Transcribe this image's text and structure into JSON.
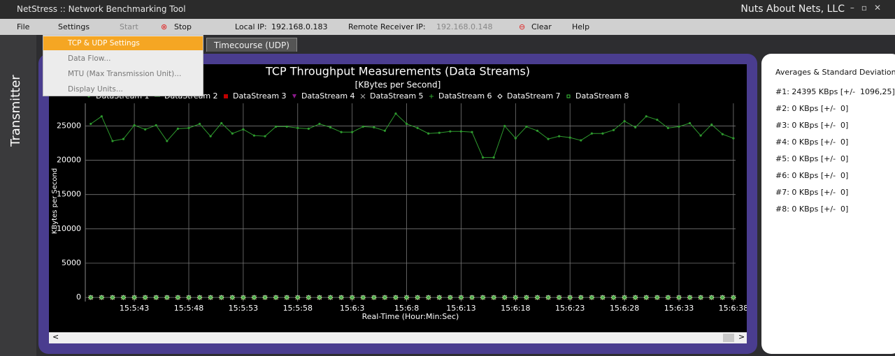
{
  "window": {
    "title": "NetStress :: Network Benchmarking Tool",
    "company": "Nuts About Nets, LLC"
  },
  "toolbar": {
    "file": "File",
    "settings": "Settings",
    "start": "Start",
    "stop": "Stop",
    "local_ip_label": "Local IP:",
    "local_ip": "192.168.0.183",
    "remote_ip_label": "Remote Receiver IP:",
    "remote_ip": "192.168.0.148",
    "clear": "Clear",
    "help": "Help"
  },
  "settings_menu": [
    "TCP & UDP Settings",
    "Data Flow...",
    "MTU (Max Transmission Unit)...",
    "Display Units..."
  ],
  "side_tab": "Transmitter",
  "tabs": [
    "Timecourse (UDP)"
  ],
  "chart_data": {
    "type": "line",
    "title": "TCP Throughput Measurements (Data Streams)",
    "subtitle": "[KBytes per Second]",
    "x_label": "Real-Time (Hour:Min:Sec)",
    "y_label": "KBytes per Second",
    "x": [
      39,
      40,
      41,
      42,
      43,
      44,
      45,
      46,
      47,
      48,
      49,
      50,
      51,
      52,
      53,
      54,
      55,
      56,
      57,
      58,
      59,
      60,
      61,
      62,
      63,
      64,
      65,
      66,
      67,
      68,
      69,
      70,
      71,
      72,
      73,
      74,
      75,
      76,
      77,
      78,
      79,
      80,
      81,
      82,
      83,
      84,
      85,
      86,
      87,
      88,
      89,
      90,
      91,
      92,
      93,
      94,
      95,
      96,
      97,
      98
    ],
    "xlim": [
      38.5,
      98.2
    ],
    "xticks": [
      {
        "value": 43,
        "label": "15:5:43"
      },
      {
        "value": 48,
        "label": "15:5:48"
      },
      {
        "value": 53,
        "label": "15:5:53"
      },
      {
        "value": 58,
        "label": "15:5:58"
      },
      {
        "value": 63,
        "label": "15:6:3"
      },
      {
        "value": 68,
        "label": "15:6:8"
      },
      {
        "value": 73,
        "label": "15:6:13"
      },
      {
        "value": 78,
        "label": "15:6:18"
      },
      {
        "value": 83,
        "label": "15:6:23"
      },
      {
        "value": 88,
        "label": "15:6:28"
      },
      {
        "value": 93,
        "label": "15:6:33"
      },
      {
        "value": 98,
        "label": "15:6:38"
      }
    ],
    "ylim": [
      -600,
      28300
    ],
    "yticks": [
      0,
      5000,
      10000,
      15000,
      20000,
      25000
    ],
    "grid": true,
    "series": [
      {
        "name": "DataStream 1",
        "color": "#2e9a2e",
        "marker": "circle",
        "line": true,
        "values": [
          25300,
          26400,
          22800,
          23100,
          25100,
          24500,
          25100,
          22800,
          24600,
          24700,
          25300,
          23500,
          25400,
          23900,
          24500,
          23600,
          23500,
          24900,
          24900,
          24700,
          24600,
          25300,
          24800,
          24100,
          24100,
          24900,
          24800,
          24300,
          26800,
          25300,
          24700,
          23900,
          24000,
          24200,
          24200,
          24100,
          20400,
          20400,
          25000,
          23200,
          24900,
          24300,
          23100,
          23500,
          23300,
          22900,
          23900,
          23900,
          24400,
          25700,
          24800,
          26400,
          25900,
          24700,
          24900,
          25400,
          23600,
          25200,
          23800,
          23200
        ]
      },
      {
        "name": "DataStream 2",
        "color": "#4aa84a",
        "marker": "dash",
        "line": false,
        "values": [
          0,
          0,
          0,
          0,
          0,
          0,
          0,
          0,
          0,
          0,
          0,
          0,
          0,
          0,
          0,
          0,
          0,
          0,
          0,
          0,
          0,
          0,
          0,
          0,
          0,
          0,
          0,
          0,
          0,
          0,
          0,
          0,
          0,
          0,
          0,
          0,
          0,
          0,
          0,
          0,
          0,
          0,
          0,
          0,
          0,
          0,
          0,
          0,
          0,
          0,
          0,
          0,
          0,
          0,
          0,
          0,
          0,
          0,
          0,
          0
        ]
      },
      {
        "name": "DataStream 3",
        "color": "#c00000",
        "marker": "square",
        "line": false,
        "values": [
          0,
          0,
          0,
          0,
          0,
          0,
          0,
          0,
          0,
          0,
          0,
          0,
          0,
          0,
          0,
          0,
          0,
          0,
          0,
          0,
          0,
          0,
          0,
          0,
          0,
          0,
          0,
          0,
          0,
          0,
          0,
          0,
          0,
          0,
          0,
          0,
          0,
          0,
          0,
          0,
          0,
          0,
          0,
          0,
          0,
          0,
          0,
          0,
          0,
          0,
          0,
          0,
          0,
          0,
          0,
          0,
          0,
          0,
          0,
          0
        ]
      },
      {
        "name": "DataStream 4",
        "color": "#8b1a8b",
        "marker": "triangle",
        "line": false,
        "values": [
          0,
          0,
          0,
          0,
          0,
          0,
          0,
          0,
          0,
          0,
          0,
          0,
          0,
          0,
          0,
          0,
          0,
          0,
          0,
          0,
          0,
          0,
          0,
          0,
          0,
          0,
          0,
          0,
          0,
          0,
          0,
          0,
          0,
          0,
          0,
          0,
          0,
          0,
          0,
          0,
          0,
          0,
          0,
          0,
          0,
          0,
          0,
          0,
          0,
          0,
          0,
          0,
          0,
          0,
          0,
          0,
          0,
          0,
          0,
          0
        ]
      },
      {
        "name": "DataStream 5",
        "color": "#aaaaaa",
        "marker": "x",
        "line": false,
        "values": [
          0,
          0,
          0,
          0,
          0,
          0,
          0,
          0,
          0,
          0,
          0,
          0,
          0,
          0,
          0,
          0,
          0,
          0,
          0,
          0,
          0,
          0,
          0,
          0,
          0,
          0,
          0,
          0,
          0,
          0,
          0,
          0,
          0,
          0,
          0,
          0,
          0,
          0,
          0,
          0,
          0,
          0,
          0,
          0,
          0,
          0,
          0,
          0,
          0,
          0,
          0,
          0,
          0,
          0,
          0,
          0,
          0,
          0,
          0,
          0
        ]
      },
      {
        "name": "DataStream 6",
        "color": "#2ea02e",
        "marker": "plus",
        "line": false,
        "values": [
          0,
          0,
          0,
          0,
          0,
          0,
          0,
          0,
          0,
          0,
          0,
          0,
          0,
          0,
          0,
          0,
          0,
          0,
          0,
          0,
          0,
          0,
          0,
          0,
          0,
          0,
          0,
          0,
          0,
          0,
          0,
          0,
          0,
          0,
          0,
          0,
          0,
          0,
          0,
          0,
          0,
          0,
          0,
          0,
          0,
          0,
          0,
          0,
          0,
          0,
          0,
          0,
          0,
          0,
          0,
          0,
          0,
          0,
          0,
          0
        ]
      },
      {
        "name": "DataStream 7",
        "color": "#ffffff",
        "marker": "diamond",
        "line": false,
        "values": [
          0,
          0,
          0,
          0,
          0,
          0,
          0,
          0,
          0,
          0,
          0,
          0,
          0,
          0,
          0,
          0,
          0,
          0,
          0,
          0,
          0,
          0,
          0,
          0,
          0,
          0,
          0,
          0,
          0,
          0,
          0,
          0,
          0,
          0,
          0,
          0,
          0,
          0,
          0,
          0,
          0,
          0,
          0,
          0,
          0,
          0,
          0,
          0,
          0,
          0,
          0,
          0,
          0,
          0,
          0,
          0,
          0,
          0,
          0,
          0
        ]
      },
      {
        "name": "DataStream 8",
        "color": "#3cc83c",
        "marker": "square-open",
        "line": false,
        "values": [
          0,
          0,
          0,
          0,
          0,
          0,
          0,
          0,
          0,
          0,
          0,
          0,
          0,
          0,
          0,
          0,
          0,
          0,
          0,
          0,
          0,
          0,
          0,
          0,
          0,
          0,
          0,
          0,
          0,
          0,
          0,
          0,
          0,
          0,
          0,
          0,
          0,
          0,
          0,
          0,
          0,
          0,
          0,
          0,
          0,
          0,
          0,
          0,
          0,
          0,
          0,
          0,
          0,
          0,
          0,
          0,
          0,
          0,
          0,
          0
        ]
      }
    ]
  },
  "stats": {
    "title": "Averages & Standard Deviations",
    "lines": [
      "#1: 24395 KBps [+/-  1096,25]",
      "#2: 0 KBps [+/-  0]",
      "#3: 0 KBps [+/-  0]",
      "#4: 0 KBps [+/-  0]",
      "#5: 0 KBps [+/-  0]",
      "#6: 0 KBps [+/-  0]",
      "#7: 0 KBps [+/-  0]",
      "#8: 0 KBps [+/-  0]"
    ]
  }
}
